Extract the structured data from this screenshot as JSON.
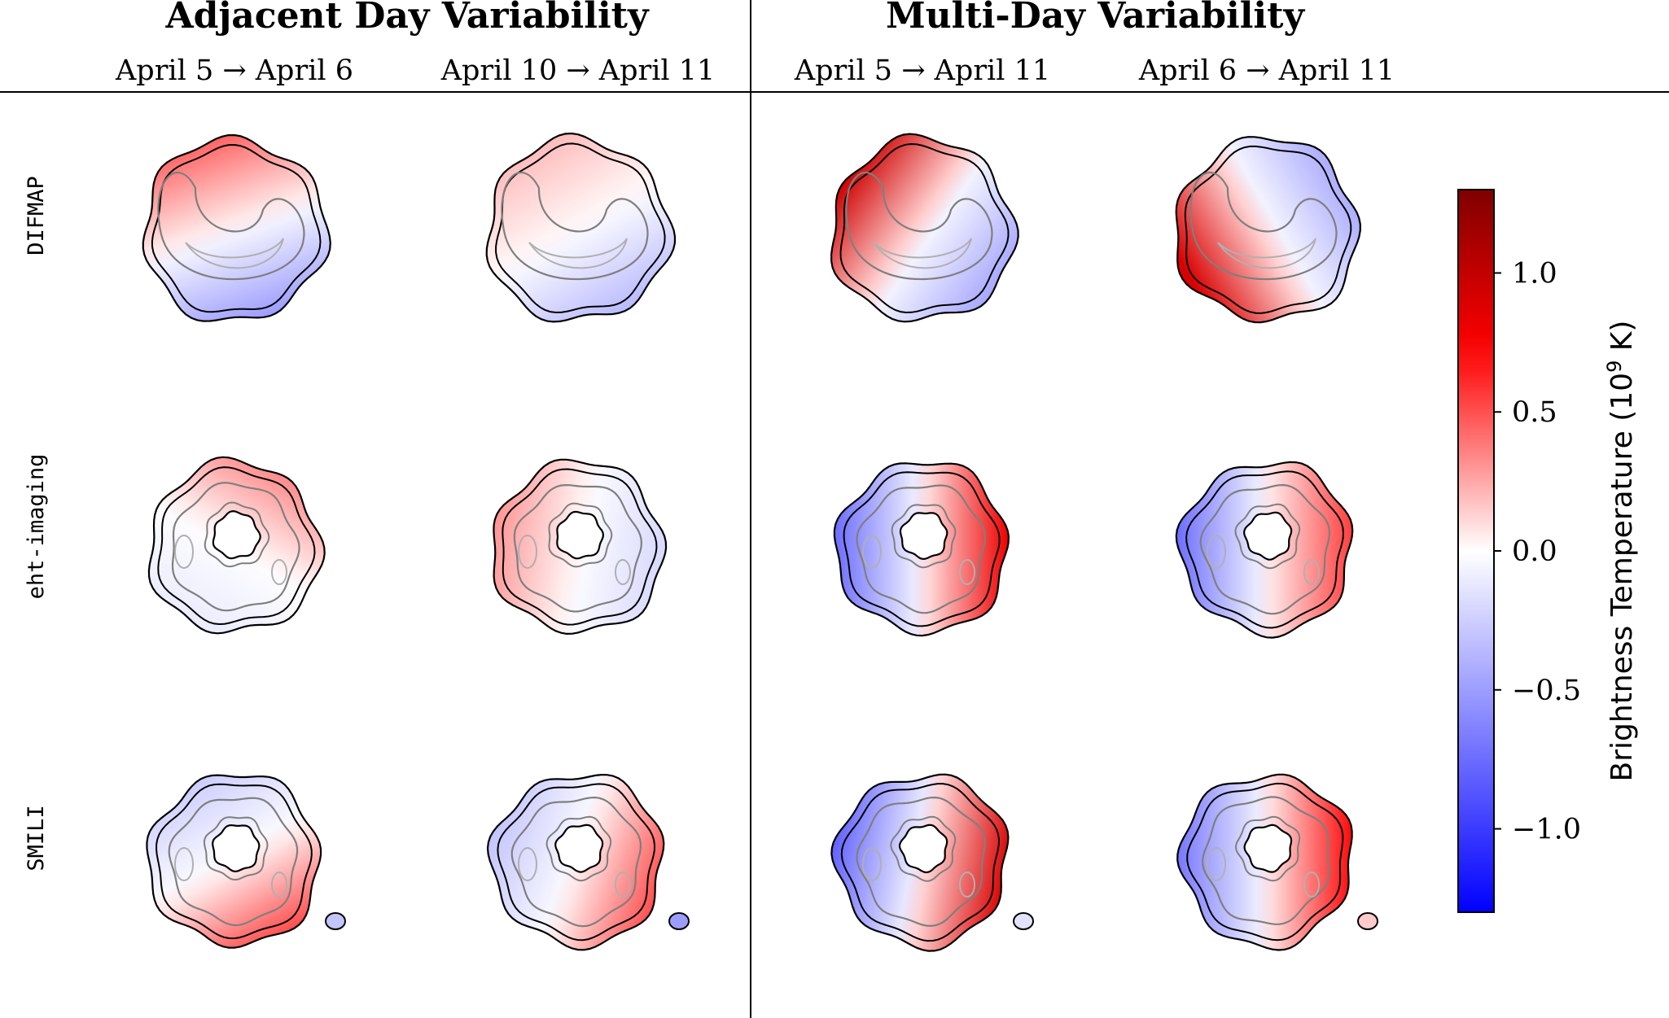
{
  "chart_data": {
    "type": "heatmap",
    "groups": [
      {
        "title": "Adjacent Day Variability",
        "columns": [
          "April 5 → April 6",
          "April 10 → April 11"
        ]
      },
      {
        "title": "Multi-Day Variability",
        "columns": [
          "April 5 → April 11",
          "April 6 → April 11"
        ]
      }
    ],
    "rows": [
      "DIFMAP",
      "eht-imaging",
      "SMILI"
    ],
    "row_shapes": [
      "crescent",
      "ring",
      "ring"
    ],
    "panels": [
      [
        {
          "peak_pos": 0.45,
          "peak_neg": -0.5,
          "dipole_angle_deg": 250,
          "beam_value": null
        },
        {
          "peak_pos": 0.2,
          "peak_neg": -0.35,
          "dipole_angle_deg": 240,
          "beam_value": null
        },
        {
          "peak_pos": 0.95,
          "peak_neg": -0.45,
          "dipole_angle_deg": 215,
          "beam_value": null
        },
        {
          "peak_pos": 0.9,
          "peak_neg": -0.45,
          "dipole_angle_deg": 150,
          "beam_value": null
        }
      ],
      [
        {
          "peak_pos": 0.35,
          "peak_neg": -0.1,
          "dipole_angle_deg": 300,
          "beam_value": null
        },
        {
          "peak_pos": 0.3,
          "peak_neg": -0.2,
          "dipole_angle_deg": 190,
          "beam_value": null
        },
        {
          "peak_pos": 0.8,
          "peak_neg": -0.75,
          "dipole_angle_deg": 0,
          "beam_value": null
        },
        {
          "peak_pos": 0.55,
          "peak_neg": -0.75,
          "dipole_angle_deg": 0,
          "beam_value": null
        }
      ],
      [
        {
          "peak_pos": 0.5,
          "peak_neg": -0.25,
          "dipole_angle_deg": 60,
          "beam_value": -0.3
        },
        {
          "peak_pos": 0.5,
          "peak_neg": -0.3,
          "dipole_angle_deg": 20,
          "beam_value": -0.5
        },
        {
          "peak_pos": 0.9,
          "peak_neg": -0.8,
          "dipole_angle_deg": 10,
          "beam_value": -0.15
        },
        {
          "peak_pos": 0.7,
          "peak_neg": -0.7,
          "dipole_angle_deg": 0,
          "beam_value": 0.15
        }
      ]
    ],
    "colorbar": {
      "label": "Brightness Temperature (10",
      "label_exp": "9",
      "label_unit": " K)",
      "range": [
        -1.3,
        1.3
      ],
      "ticks": [
        1.0,
        0.5,
        0.0,
        -0.5,
        -1.0
      ],
      "tick_labels": [
        "1.0",
        "0.5",
        "0.0",
        "−0.5",
        "−1.0"
      ],
      "colormap": "bwr",
      "colors": {
        "low": "#0000ff",
        "mid": "#ffffff",
        "high": "#800000",
        "red": "#ff0000"
      }
    },
    "contour_colors": {
      "outer": "#000000",
      "inner": "#7f7f7f",
      "innermost": "#b0b0b0"
    }
  }
}
